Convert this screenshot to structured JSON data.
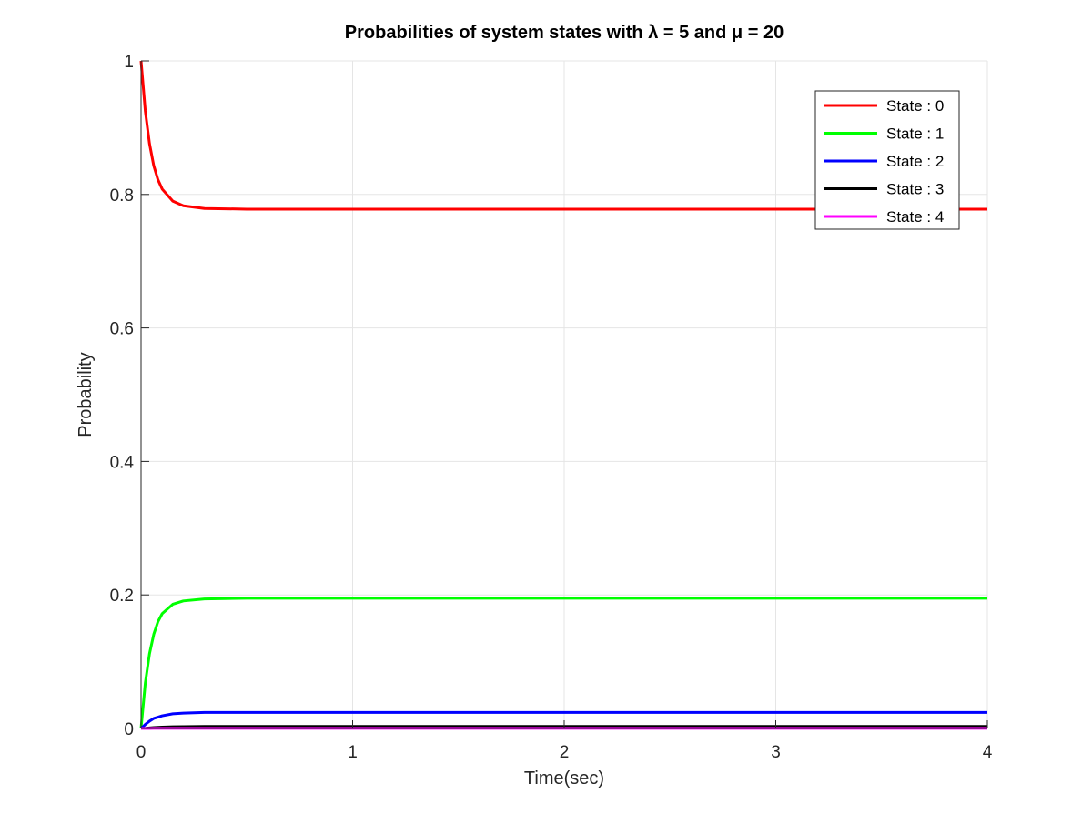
{
  "chart_data": {
    "type": "line",
    "title": "Probabilities of system states with λ = 5 and μ = 20",
    "xlabel": "Time(sec)",
    "ylabel": "Probability",
    "xlim": [
      0,
      4
    ],
    "ylim": [
      0,
      1
    ],
    "xticks": [
      0,
      1,
      2,
      3,
      4
    ],
    "xtick_labels": [
      "0",
      "1",
      "2",
      "3",
      "4"
    ],
    "yticks": [
      0,
      0.2,
      0.4,
      0.6,
      0.8,
      1
    ],
    "ytick_labels": [
      "0",
      "0.2",
      "0.4",
      "0.6",
      "0.8",
      "1"
    ],
    "grid": true,
    "legend_position": "top-right",
    "x": [
      0,
      0.02,
      0.04,
      0.06,
      0.08,
      0.1,
      0.15,
      0.2,
      0.3,
      0.4,
      0.5,
      1,
      2,
      3,
      4
    ],
    "series": [
      {
        "name": "State : 0",
        "color": "#ff0000",
        "values": [
          1.0,
          0.925,
          0.876,
          0.843,
          0.822,
          0.808,
          0.79,
          0.783,
          0.779,
          0.7785,
          0.778,
          0.778,
          0.778,
          0.778,
          0.778
        ]
      },
      {
        "name": "State : 1",
        "color": "#00ff00",
        "values": [
          0.0,
          0.068,
          0.112,
          0.141,
          0.16,
          0.172,
          0.186,
          0.191,
          0.194,
          0.1945,
          0.195,
          0.195,
          0.195,
          0.195,
          0.195
        ]
      },
      {
        "name": "State : 2",
        "color": "#0000ff",
        "values": [
          0.0,
          0.006,
          0.011,
          0.015,
          0.017,
          0.019,
          0.022,
          0.023,
          0.024,
          0.024,
          0.024,
          0.024,
          0.024,
          0.024,
          0.024
        ]
      },
      {
        "name": "State : 3",
        "color": "#000000",
        "values": [
          0.0,
          0.0003,
          0.0008,
          0.0013,
          0.0017,
          0.002,
          0.0025,
          0.0028,
          0.003,
          0.003,
          0.003,
          0.003,
          0.003,
          0.003,
          0.003
        ]
      },
      {
        "name": "State : 4",
        "color": "#ff00ff",
        "values": [
          0.0,
          2e-05,
          5e-05,
          0.0001,
          0.00013,
          0.00016,
          0.0002,
          0.00022,
          0.00024,
          0.00025,
          0.00025,
          0.00025,
          0.00025,
          0.00025,
          0.00025
        ]
      }
    ]
  }
}
